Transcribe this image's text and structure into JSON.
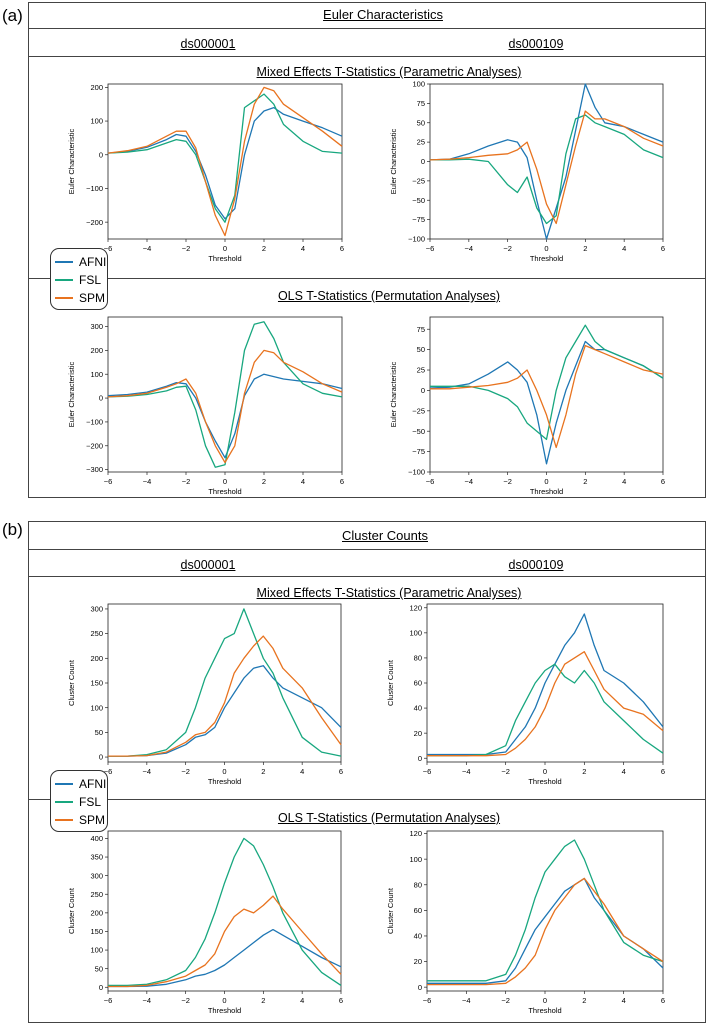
{
  "panels": [
    {
      "letter": "(a)",
      "title": "Euler Characteristics",
      "dataset_left": "ds000001",
      "dataset_right": "ds000109",
      "row_titles": [
        "Mixed Effects T-Statistics (Parametric Analyses)",
        "OLS T-Statistics (Permutation Analyses)"
      ]
    },
    {
      "letter": "(b)",
      "title": "Cluster Counts",
      "dataset_left": "ds000001",
      "dataset_right": "ds000109",
      "row_titles": [
        "Mixed Effects T-Statistics (Parametric Analyses)",
        "OLS T-Statistics (Permutation Analyses)"
      ]
    }
  ],
  "legend": [
    {
      "label": "AFNI",
      "color": "#1f77b4"
    },
    {
      "label": "FSL",
      "color": "#18a77f"
    },
    {
      "label": "SPM",
      "color": "#e8731f"
    }
  ],
  "chart_data": [
    {
      "type": "line",
      "panel": "a",
      "dataset": "ds000001",
      "analysis": "Mixed Effects T-Statistics (Parametric Analyses)",
      "xlabel": "Threshold",
      "ylabel": "Euler Characteristic",
      "xlim": [
        -6,
        6
      ],
      "ylim": [
        -250,
        210
      ],
      "xticks": [
        -6,
        -4,
        -2,
        0,
        2,
        4,
        6
      ],
      "yticks": [
        -200,
        -100,
        0,
        100,
        200
      ],
      "x": [
        -6,
        -5,
        -4,
        -3,
        -2.5,
        -2,
        -1.5,
        -1,
        -0.5,
        0,
        0.5,
        1,
        1.5,
        2,
        2.5,
        3,
        4,
        5,
        6
      ],
      "series": [
        {
          "name": "AFNI",
          "values": [
            5,
            10,
            22,
            45,
            60,
            55,
            10,
            -60,
            -150,
            -190,
            -160,
            0,
            100,
            130,
            140,
            120,
            100,
            80,
            55
          ]
        },
        {
          "name": "FSL",
          "values": [
            5,
            8,
            15,
            35,
            45,
            40,
            0,
            -80,
            -160,
            -200,
            -120,
            140,
            160,
            180,
            150,
            90,
            40,
            10,
            5
          ]
        },
        {
          "name": "SPM",
          "values": [
            5,
            12,
            25,
            55,
            70,
            70,
            20,
            -80,
            -180,
            -240,
            -130,
            40,
            150,
            200,
            190,
            150,
            110,
            70,
            25
          ]
        }
      ]
    },
    {
      "type": "line",
      "panel": "a",
      "dataset": "ds000109",
      "analysis": "Mixed Effects T-Statistics (Parametric Analyses)",
      "xlabel": "Threshold",
      "ylabel": "Euler Characteristic",
      "xlim": [
        -6,
        6
      ],
      "ylim": [
        -100,
        100
      ],
      "xticks": [
        -6,
        -4,
        -2,
        0,
        2,
        4,
        6
      ],
      "yticks": [
        -100,
        -75,
        -50,
        -25,
        0,
        25,
        50,
        75,
        100
      ],
      "x": [
        -6,
        -5,
        -4,
        -3,
        -2,
        -1.5,
        -1,
        -0.5,
        0,
        0.5,
        1,
        1.5,
        2,
        2.5,
        3,
        4,
        5,
        6
      ],
      "series": [
        {
          "name": "AFNI",
          "values": [
            2,
            3,
            10,
            20,
            28,
            25,
            5,
            -50,
            -100,
            -60,
            -20,
            40,
            100,
            70,
            50,
            45,
            35,
            25
          ]
        },
        {
          "name": "FSL",
          "values": [
            2,
            2,
            3,
            0,
            -30,
            -40,
            -20,
            -60,
            -80,
            -70,
            10,
            55,
            60,
            50,
            45,
            35,
            15,
            5
          ]
        },
        {
          "name": "SPM",
          "values": [
            2,
            3,
            5,
            8,
            10,
            15,
            25,
            -10,
            -55,
            -80,
            -30,
            20,
            65,
            55,
            55,
            45,
            30,
            20
          ]
        }
      ]
    },
    {
      "type": "line",
      "panel": "a",
      "dataset": "ds000001",
      "analysis": "OLS T-Statistics (Permutation Analyses)",
      "xlabel": "Threshold",
      "ylabel": "Euler Characteristic",
      "xlim": [
        -6,
        6
      ],
      "ylim": [
        -310,
        340
      ],
      "xticks": [
        -6,
        -4,
        -2,
        0,
        2,
        4,
        6
      ],
      "yticks": [
        -300,
        -200,
        -100,
        0,
        100,
        200,
        300
      ],
      "x": [
        -6,
        -5,
        -4,
        -3,
        -2.5,
        -2,
        -1.5,
        -1,
        -0.5,
        0,
        0.5,
        1,
        1.5,
        2,
        2.5,
        3,
        4,
        5,
        6
      ],
      "series": [
        {
          "name": "AFNI",
          "values": [
            10,
            15,
            25,
            50,
            65,
            60,
            0,
            -100,
            -180,
            -250,
            -150,
            10,
            80,
            100,
            90,
            80,
            70,
            60,
            40
          ]
        },
        {
          "name": "FSL",
          "values": [
            5,
            8,
            15,
            30,
            45,
            50,
            -50,
            -200,
            -290,
            -280,
            -60,
            200,
            310,
            320,
            250,
            150,
            60,
            20,
            5
          ]
        },
        {
          "name": "SPM",
          "values": [
            5,
            10,
            20,
            45,
            60,
            80,
            20,
            -100,
            -200,
            -270,
            -200,
            20,
            150,
            200,
            190,
            150,
            110,
            60,
            25
          ]
        }
      ]
    },
    {
      "type": "line",
      "panel": "a",
      "dataset": "ds000109",
      "analysis": "OLS T-Statistics (Permutation Analyses)",
      "xlabel": "Threshold",
      "ylabel": "Euler Characteristic",
      "xlim": [
        -6,
        6
      ],
      "ylim": [
        -100,
        90
      ],
      "xticks": [
        -6,
        -4,
        -2,
        0,
        2,
        4,
        6
      ],
      "yticks": [
        -100,
        -75,
        -50,
        -25,
        0,
        25,
        50,
        75
      ],
      "x": [
        -6,
        -5,
        -4,
        -3,
        -2,
        -1.5,
        -1,
        -0.5,
        0,
        0.5,
        1,
        1.5,
        2,
        2.5,
        3,
        4,
        5,
        6
      ],
      "series": [
        {
          "name": "AFNI",
          "values": [
            3,
            4,
            8,
            20,
            35,
            25,
            10,
            -30,
            -90,
            -40,
            0,
            30,
            60,
            50,
            50,
            40,
            30,
            15
          ]
        },
        {
          "name": "FSL",
          "values": [
            5,
            5,
            5,
            0,
            -10,
            -20,
            -40,
            -50,
            -60,
            0,
            40,
            60,
            80,
            60,
            50,
            40,
            30,
            15
          ]
        },
        {
          "name": "SPM",
          "values": [
            2,
            2,
            4,
            6,
            10,
            15,
            25,
            0,
            -30,
            -70,
            -30,
            20,
            55,
            50,
            45,
            35,
            25,
            20
          ]
        }
      ]
    },
    {
      "type": "line",
      "panel": "b",
      "dataset": "ds000001",
      "analysis": "Mixed Effects T-Statistics (Parametric Analyses)",
      "xlabel": "Threshold",
      "ylabel": "Cluster Count",
      "xlim": [
        -6,
        6
      ],
      "ylim": [
        -10,
        310
      ],
      "xticks": [
        -6,
        -4,
        -2,
        0,
        2,
        4,
        6
      ],
      "yticks": [
        0,
        50,
        100,
        150,
        200,
        250,
        300
      ],
      "x": [
        -6,
        -5,
        -4,
        -3,
        -2,
        -1.5,
        -1,
        -0.5,
        0,
        0.5,
        1,
        1.5,
        2,
        2.5,
        3,
        4,
        5,
        6
      ],
      "series": [
        {
          "name": "AFNI",
          "values": [
            2,
            2,
            3,
            8,
            25,
            40,
            45,
            60,
            100,
            130,
            160,
            180,
            185,
            160,
            140,
            120,
            100,
            60
          ]
        },
        {
          "name": "FSL",
          "values": [
            2,
            2,
            5,
            15,
            50,
            100,
            160,
            200,
            240,
            250,
            300,
            250,
            200,
            170,
            120,
            40,
            10,
            2
          ]
        },
        {
          "name": "SPM",
          "values": [
            2,
            2,
            3,
            10,
            30,
            45,
            50,
            70,
            110,
            170,
            200,
            225,
            245,
            220,
            180,
            140,
            80,
            25
          ]
        }
      ]
    },
    {
      "type": "line",
      "panel": "b",
      "dataset": "ds000109",
      "analysis": "Mixed Effects T-Statistics (Parametric Analyses)",
      "xlabel": "Threshold",
      "ylabel": "Cluster Count",
      "xlim": [
        -6,
        6
      ],
      "ylim": [
        -3,
        123
      ],
      "xticks": [
        -6,
        -4,
        -2,
        0,
        2,
        4,
        6
      ],
      "yticks": [
        0,
        20,
        40,
        60,
        80,
        100,
        120
      ],
      "x": [
        -6,
        -5,
        -4,
        -3,
        -2,
        -1.5,
        -1,
        -0.5,
        0,
        0.5,
        1,
        1.5,
        2,
        2.5,
        3,
        4,
        5,
        6
      ],
      "series": [
        {
          "name": "AFNI",
          "values": [
            3,
            3,
            3,
            3,
            5,
            15,
            25,
            40,
            60,
            75,
            90,
            100,
            115,
            90,
            70,
            60,
            45,
            25
          ]
        },
        {
          "name": "FSL",
          "values": [
            2,
            2,
            2,
            3,
            10,
            30,
            45,
            60,
            70,
            75,
            65,
            60,
            70,
            60,
            45,
            30,
            15,
            4
          ]
        },
        {
          "name": "SPM",
          "values": [
            2,
            2,
            2,
            2,
            3,
            8,
            15,
            25,
            40,
            60,
            75,
            80,
            85,
            70,
            55,
            40,
            35,
            22
          ]
        }
      ]
    },
    {
      "type": "line",
      "panel": "b",
      "dataset": "ds000001",
      "analysis": "OLS T-Statistics (Permutation Analyses)",
      "xlabel": "Threshold",
      "ylabel": "Cluster Count",
      "xlim": [
        -6,
        6
      ],
      "ylim": [
        -10,
        420
      ],
      "xticks": [
        -6,
        -4,
        -2,
        0,
        2,
        4,
        6
      ],
      "yticks": [
        0,
        50,
        100,
        150,
        200,
        250,
        300,
        350,
        400
      ],
      "x": [
        -6,
        -5,
        -4,
        -3,
        -2,
        -1.5,
        -1,
        -0.5,
        0,
        0.5,
        1,
        1.5,
        2,
        2.5,
        3,
        4,
        5,
        6
      ],
      "series": [
        {
          "name": "AFNI",
          "values": [
            2,
            2,
            3,
            8,
            20,
            30,
            35,
            45,
            60,
            80,
            100,
            120,
            140,
            155,
            140,
            110,
            80,
            55
          ]
        },
        {
          "name": "FSL",
          "values": [
            5,
            5,
            8,
            20,
            45,
            80,
            130,
            200,
            280,
            350,
            400,
            380,
            330,
            270,
            200,
            100,
            40,
            5
          ]
        },
        {
          "name": "SPM",
          "values": [
            2,
            2,
            5,
            15,
            30,
            45,
            60,
            90,
            150,
            190,
            210,
            200,
            220,
            245,
            210,
            150,
            90,
            35
          ]
        }
      ]
    },
    {
      "type": "line",
      "panel": "b",
      "dataset": "ds000109",
      "analysis": "OLS T-Statistics (Permutation Analyses)",
      "xlabel": "Threshold",
      "ylabel": "Cluster Count",
      "xlim": [
        -6,
        6
      ],
      "ylim": [
        -3,
        122
      ],
      "xticks": [
        -6,
        -4,
        -2,
        0,
        2,
        4,
        6
      ],
      "yticks": [
        0,
        20,
        40,
        60,
        80,
        100,
        120
      ],
      "x": [
        -6,
        -5,
        -4,
        -3,
        -2,
        -1.5,
        -1,
        -0.5,
        0,
        0.5,
        1,
        1.5,
        2,
        2.5,
        3,
        4,
        5,
        6
      ],
      "series": [
        {
          "name": "AFNI",
          "values": [
            3,
            3,
            3,
            3,
            5,
            15,
            30,
            45,
            55,
            65,
            75,
            80,
            85,
            70,
            60,
            40,
            30,
            15
          ]
        },
        {
          "name": "FSL",
          "values": [
            5,
            5,
            5,
            5,
            10,
            25,
            45,
            70,
            90,
            100,
            110,
            115,
            100,
            80,
            60,
            35,
            25,
            20
          ]
        },
        {
          "name": "SPM",
          "values": [
            2,
            2,
            2,
            2,
            3,
            8,
            15,
            25,
            45,
            60,
            70,
            80,
            85,
            75,
            65,
            40,
            30,
            20
          ]
        }
      ]
    }
  ]
}
